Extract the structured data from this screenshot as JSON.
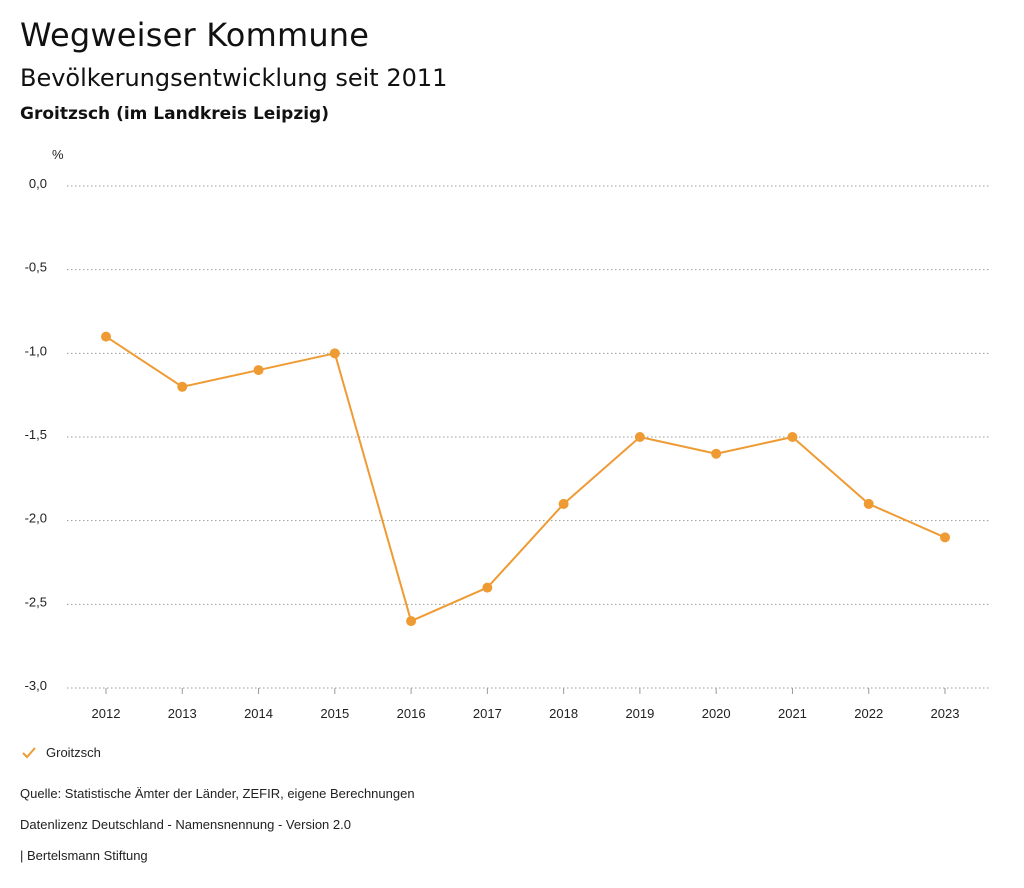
{
  "header": {
    "title": "Wegweiser Kommune",
    "subtitle": "Bevölkerungsentwicklung seit 2011",
    "region": "Groitzsch (im Landkreis Leipzig)"
  },
  "chart_data": {
    "type": "line",
    "unit_label": "%",
    "x": [
      "2012",
      "2013",
      "2014",
      "2015",
      "2016",
      "2017",
      "2018",
      "2019",
      "2020",
      "2021",
      "2022",
      "2023"
    ],
    "series": [
      {
        "name": "Groitzsch",
        "color": "#ef9b34",
        "values": [
          -0.9,
          -1.2,
          -1.1,
          -1.0,
          -2.6,
          -2.4,
          -1.9,
          -1.5,
          -1.6,
          -1.5,
          -1.9,
          -2.1
        ]
      }
    ],
    "y_ticks": [
      0.0,
      -0.5,
      -1.0,
      -1.5,
      -2.0,
      -2.5,
      -3.0
    ],
    "y_tick_labels": [
      "0,0",
      "-0,5",
      "-1,0",
      "-1,5",
      "-2,0",
      "-2,5",
      "-3,0"
    ],
    "ylim": [
      -3.0,
      0.0
    ],
    "grid": true,
    "legend_position": "bottom-left"
  },
  "legend": {
    "label": "Groitzsch"
  },
  "footer": {
    "source": "Quelle: Statistische Ämter der Länder, ZEFIR, eigene Berechnungen",
    "license": "Datenlizenz Deutschland - Namensnennung - Version 2.0",
    "publisher": "| Bertelsmann Stiftung"
  }
}
